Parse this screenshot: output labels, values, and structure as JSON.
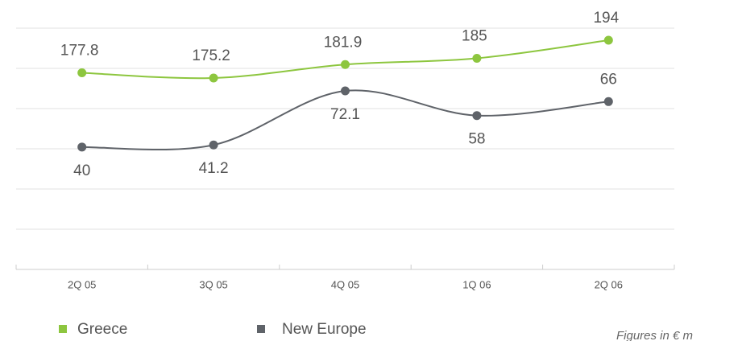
{
  "chart_data": {
    "type": "line",
    "categories": [
      "2Q 05",
      "3Q 05",
      "4Q 05",
      "1Q 06",
      "2Q 06"
    ],
    "series": [
      {
        "name": "Greece",
        "color": "#8dc63f",
        "values": [
          177.8,
          175.2,
          181.9,
          185,
          194
        ]
      },
      {
        "name": "New Europe",
        "color": "#5f6369",
        "values": [
          40,
          41.2,
          72.1,
          58,
          66
        ],
        "axis": "y2"
      }
    ],
    "ylim": [
      80,
      200
    ],
    "y2lim": [
      -30,
      108
    ],
    "annotation": "Figures in € m"
  }
}
